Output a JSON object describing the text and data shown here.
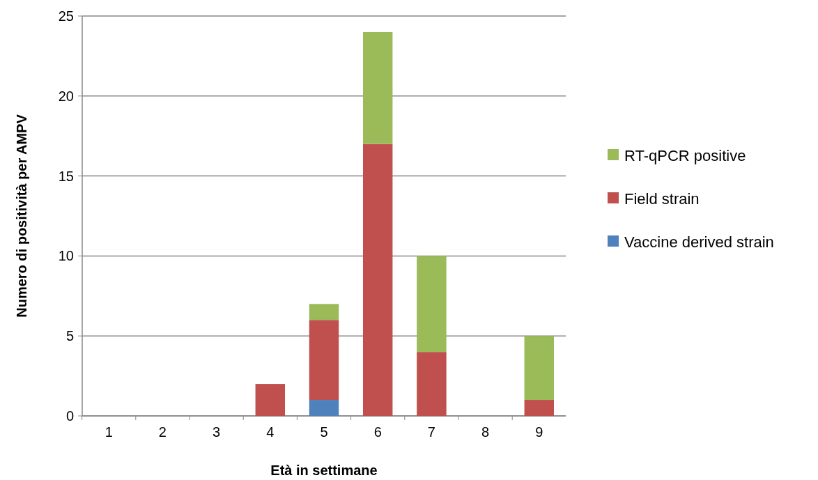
{
  "chart_data": {
    "type": "bar",
    "stacked": true,
    "xlabel": "Età in settimane",
    "ylabel": "Numero di positività per AMPV",
    "categories": [
      "1",
      "2",
      "3",
      "4",
      "5",
      "6",
      "7",
      "8",
      "9"
    ],
    "series": [
      {
        "name": "Vaccine derived strain",
        "color": "#4f81bd",
        "values": [
          0,
          0,
          0,
          0,
          1,
          0,
          0,
          0,
          0
        ]
      },
      {
        "name": "Field strain",
        "color": "#c0504d",
        "values": [
          0,
          0,
          0,
          2,
          5,
          17,
          4,
          0,
          1
        ]
      },
      {
        "name": "RT-qPCR positive",
        "color": "#9bbb59",
        "values": [
          0,
          0,
          0,
          0,
          1,
          7,
          6,
          0,
          4
        ]
      }
    ],
    "ylim": [
      0,
      25
    ],
    "yticks": [
      0,
      5,
      10,
      15,
      20,
      25
    ],
    "grid": "y",
    "legend": "right"
  }
}
